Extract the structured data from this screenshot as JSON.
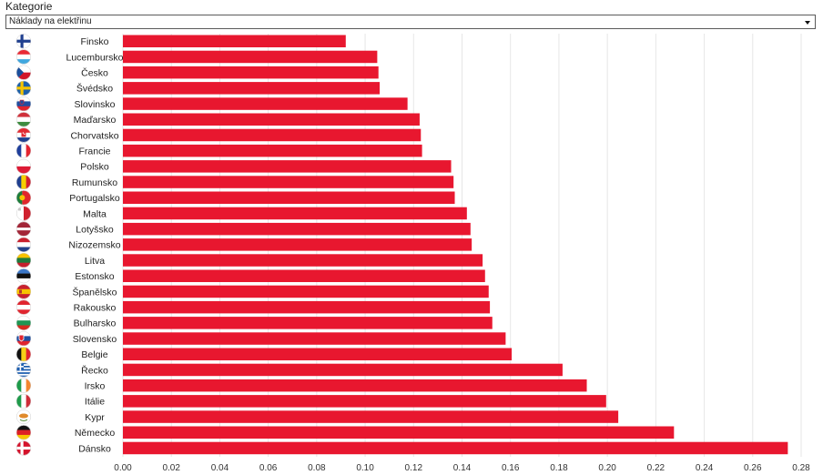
{
  "filter": {
    "label": "Kategorie",
    "selected": "Náklady na elektřinu"
  },
  "chart_data": {
    "type": "bar",
    "orientation": "horizontal",
    "categories": [
      "Finsko",
      "Lucembursko",
      "Česko",
      "Švédsko",
      "Slovinsko",
      "Maďarsko",
      "Chorvatsko",
      "Francie",
      "Polsko",
      "Rumunsko",
      "Portugalsko",
      "Malta",
      "Lotyšsko",
      "Nizozemsko",
      "Litva",
      "Estonsko",
      "Španělsko",
      "Rakousko",
      "Bulharsko",
      "Slovensko",
      "Belgie",
      "Řecko",
      "Irsko",
      "Itálie",
      "Kypr",
      "Německo",
      "Dánsko"
    ],
    "values": [
      0.092,
      0.105,
      0.1055,
      0.106,
      0.1175,
      0.1225,
      0.123,
      0.1235,
      0.1355,
      0.1365,
      0.137,
      0.142,
      0.1435,
      0.144,
      0.1485,
      0.1495,
      0.151,
      0.1515,
      0.1525,
      0.158,
      0.1605,
      0.1815,
      0.1915,
      0.1995,
      0.2045,
      0.2275,
      0.2745
    ],
    "xlim": [
      0,
      0.28
    ],
    "xticks": [
      "0.00",
      "0.02",
      "0.04",
      "0.06",
      "0.08",
      "0.10",
      "0.12",
      "0.14",
      "0.16",
      "0.18",
      "0.20",
      "0.22",
      "0.24",
      "0.26",
      "0.28"
    ],
    "grid": true,
    "bar_color": "#e8172f",
    "flags": [
      "finland-flag-icon",
      "luxembourg-flag-icon",
      "czech-flag-icon",
      "sweden-flag-icon",
      "slovenia-flag-icon",
      "hungary-flag-icon",
      "croatia-flag-icon",
      "france-flag-icon",
      "poland-flag-icon",
      "romania-flag-icon",
      "portugal-flag-icon",
      "malta-flag-icon",
      "latvia-flag-icon",
      "netherlands-flag-icon",
      "lithuania-flag-icon",
      "estonia-flag-icon",
      "spain-flag-icon",
      "austria-flag-icon",
      "bulgaria-flag-icon",
      "slovakia-flag-icon",
      "belgium-flag-icon",
      "greece-flag-icon",
      "ireland-flag-icon",
      "italy-flag-icon",
      "cyprus-flag-icon",
      "germany-flag-icon",
      "denmark-flag-icon"
    ]
  }
}
